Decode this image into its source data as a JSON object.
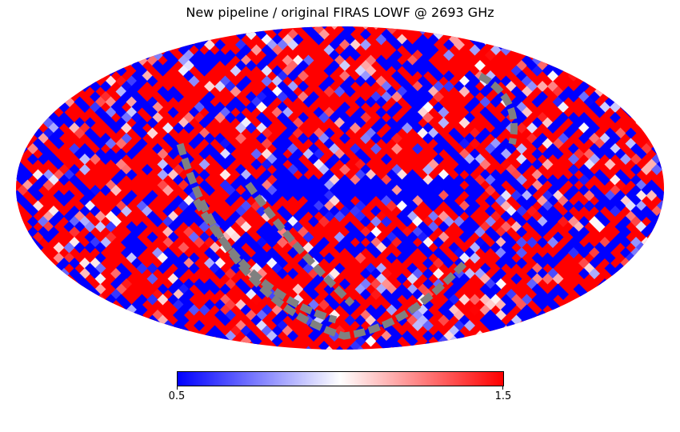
{
  "chart_data": {
    "type": "heatmap",
    "projection": "mollweide",
    "title": "New pipeline / original FIRAS LOWF @ 2693 GHz",
    "colormap": "bwr",
    "vmin": 0.5,
    "vmax": 1.5,
    "colorbar": {
      "ticks": [
        "0.5",
        "1.5"
      ],
      "orientation": "horizontal",
      "placement": "bottom"
    },
    "bad_color": "#808080",
    "colors": {
      "low": "#0000ff",
      "mid": "#ffffff",
      "high": "#ff0000"
    }
  }
}
